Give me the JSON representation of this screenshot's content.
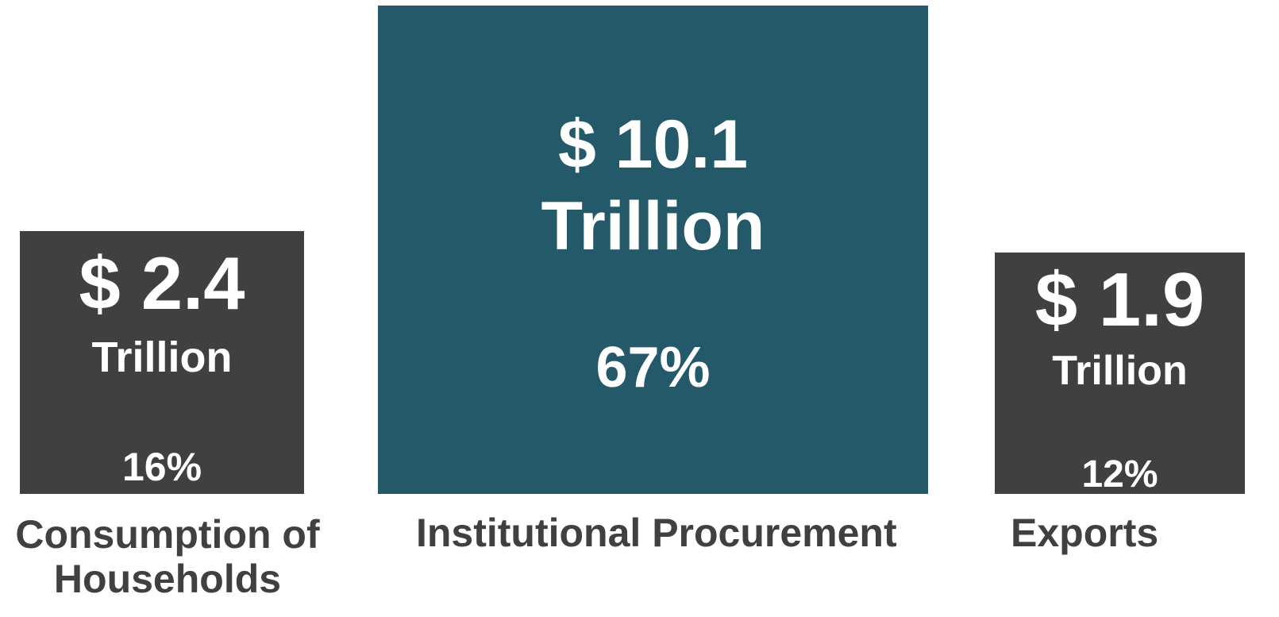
{
  "items": [
    {
      "amount": "$ 2.4",
      "unit": "Trillion",
      "share": "16%",
      "label": "Consumption of Households"
    },
    {
      "amount": "$ 10.1",
      "unit": "Trillion",
      "share": "67%",
      "label": "Institutional Procurement"
    },
    {
      "amount": "$ 1.9",
      "unit": "Trillion",
      "share": "12%",
      "label": "Exports"
    }
  ]
}
